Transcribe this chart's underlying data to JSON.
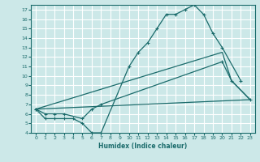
{
  "xlabel": "Humidex (Indice chaleur)",
  "xlim": [
    -0.5,
    23.5
  ],
  "ylim": [
    4,
    17.5
  ],
  "xticks": [
    0,
    1,
    2,
    3,
    4,
    5,
    6,
    7,
    8,
    9,
    10,
    11,
    12,
    13,
    14,
    15,
    16,
    17,
    18,
    19,
    20,
    21,
    22,
    23
  ],
  "yticks": [
    4,
    5,
    6,
    7,
    8,
    9,
    10,
    11,
    12,
    13,
    14,
    15,
    16,
    17
  ],
  "bg_color": "#cce8e8",
  "line_color": "#1a6b6b",
  "grid_color": "#ffffff",
  "curve1_x": [
    0,
    1,
    2,
    3,
    4,
    5,
    6,
    7,
    10,
    11,
    12,
    13,
    14,
    15,
    16,
    17,
    18,
    19,
    20,
    22
  ],
  "curve1_y": [
    6.5,
    5.5,
    5.5,
    5.5,
    5.5,
    5.0,
    4.0,
    4.0,
    11.0,
    12.5,
    13.5,
    15.0,
    16.5,
    16.5,
    17.0,
    17.5,
    16.5,
    14.5,
    13.0,
    9.5
  ],
  "curve2_x": [
    0,
    23
  ],
  "curve2_y": [
    6.5,
    7.5
  ],
  "curve3_x": [
    0,
    20,
    21,
    23
  ],
  "curve3_y": [
    6.5,
    12.5,
    9.5,
    7.5
  ],
  "curve4_x": [
    0,
    1,
    2,
    3,
    5,
    6,
    7,
    20,
    21,
    23
  ],
  "curve4_y": [
    6.5,
    6.0,
    6.0,
    6.0,
    5.5,
    6.5,
    7.0,
    11.5,
    9.5,
    7.5
  ]
}
